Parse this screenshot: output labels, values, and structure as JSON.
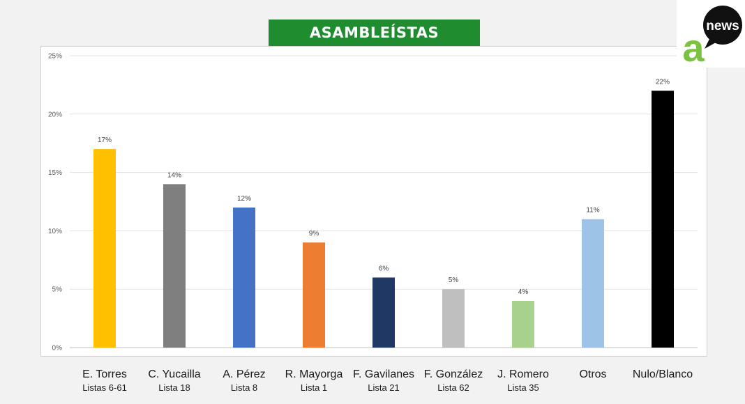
{
  "brand": {
    "logo_mark": "a",
    "logo_text": "news",
    "colors": {
      "green": "#1f8c2f",
      "logo_green": "#7cc242",
      "black": "#111111"
    }
  },
  "chart_data": {
    "type": "bar",
    "title": "ASAMBLEÍSTAS",
    "xlabel": "",
    "ylabel": "",
    "ylim": [
      0,
      25
    ],
    "yticks": [
      "0%",
      "5%",
      "10%",
      "15%",
      "20%",
      "25%"
    ],
    "grid": true,
    "categories": [
      {
        "name": "E. Torres",
        "sub": "Listas 6-61"
      },
      {
        "name": "C. Yucailla",
        "sub": "Lista 18"
      },
      {
        "name": "A. Pérez",
        "sub": "Lista 8"
      },
      {
        "name": "R. Mayorga",
        "sub": "Lista 1"
      },
      {
        "name": "F. Gavilanes",
        "sub": "Lista 21"
      },
      {
        "name": "F. González",
        "sub": "Lista 62"
      },
      {
        "name": "J. Romero",
        "sub": "Lista 35"
      },
      {
        "name": "Otros",
        "sub": ""
      },
      {
        "name": "Nulo/Blanco",
        "sub": ""
      }
    ],
    "values": [
      17,
      14,
      12,
      9,
      6,
      5,
      4,
      11,
      22
    ],
    "data_labels": [
      "17%",
      "14%",
      "12%",
      "9%",
      "6%",
      "5%",
      "4%",
      "11%",
      "22%"
    ],
    "colors": [
      "#ffc000",
      "#7f7f7f",
      "#4472c4",
      "#ed7d31",
      "#203864",
      "#bfbfbf",
      "#a9d18e",
      "#9dc3e6",
      "#000000"
    ]
  }
}
